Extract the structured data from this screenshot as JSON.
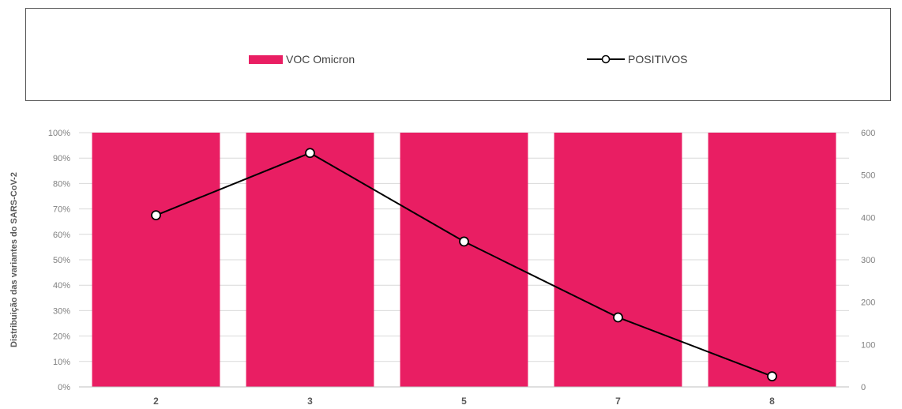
{
  "chart_data": {
    "type": "bar",
    "categories": [
      "2",
      "3",
      "5",
      "7",
      "8"
    ],
    "series": [
      {
        "name": "VOC Omicron",
        "kind": "bar",
        "axis": "left",
        "values": [
          100,
          100,
          100,
          100,
          100
        ],
        "color": "#E91E63"
      },
      {
        "name": "POSITIVOS",
        "kind": "line",
        "axis": "right",
        "values": [
          405,
          552,
          343,
          164,
          25
        ],
        "color": "#000000"
      }
    ],
    "ylabel": "Distribuição das variantes do SARS-CoV-2",
    "ylim": [
      0,
      100
    ],
    "y_ticks": [
      "0%",
      "10%",
      "20%",
      "30%",
      "40%",
      "50%",
      "60%",
      "70%",
      "80%",
      "90%",
      "100%"
    ],
    "y2lim": [
      0,
      600
    ],
    "y2_ticks": [
      "0",
      "100",
      "200",
      "300",
      "400",
      "500",
      "600"
    ],
    "grid": true,
    "legend_position": "top"
  }
}
